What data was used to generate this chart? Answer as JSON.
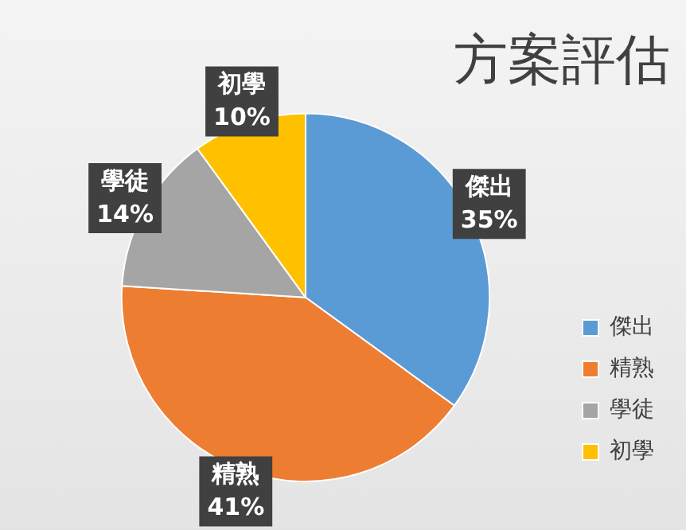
{
  "chart_data": {
    "type": "pie",
    "title": "方案評估",
    "categories": [
      "傑出",
      "精熟",
      "學徒",
      "初學"
    ],
    "values": [
      35,
      41,
      14,
      10
    ],
    "colors": [
      "#5b9bd5",
      "#ed7d31",
      "#a5a5a5",
      "#ffc000"
    ],
    "legend": "bottom right",
    "value_labels": [
      "35%",
      "41%",
      "14%",
      "10%"
    ]
  }
}
